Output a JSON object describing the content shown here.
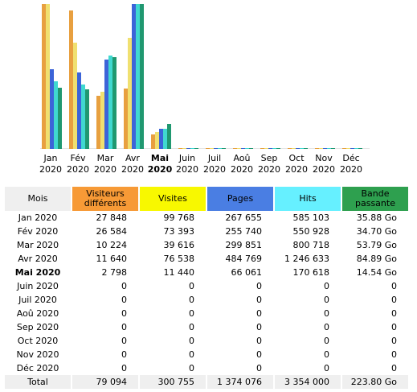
{
  "chart_data": {
    "type": "bar",
    "categories": [
      "Jan 2020",
      "Fév 2020",
      "Mar 2020",
      "Avr 2020",
      "Mai 2020",
      "Juin 2020",
      "Juil 2020",
      "Aoû 2020",
      "Sep 2020",
      "Oct 2020",
      "Nov 2020",
      "Déc 2020"
    ],
    "month_names": [
      "Jan",
      "Fév",
      "Mar",
      "Avr",
      "Mai",
      "Juin",
      "Juil",
      "Aoû",
      "Sep",
      "Oct",
      "Nov",
      "Déc"
    ],
    "years": [
      "2020",
      "2020",
      "2020",
      "2020",
      "2020",
      "2020",
      "2020",
      "2020",
      "2020",
      "2020",
      "2020",
      "2020"
    ],
    "current_index": 4,
    "series": [
      {
        "name": "Visiteurs différents",
        "color": "#e8a040",
        "values": [
          27848,
          26584,
          10224,
          11640,
          2798,
          0,
          0,
          0,
          0,
          0,
          0,
          0
        ]
      },
      {
        "name": "Visites",
        "color": "#f0e070",
        "values": [
          99768,
          73393,
          39616,
          76538,
          11440,
          0,
          0,
          0,
          0,
          0,
          0,
          0
        ]
      },
      {
        "name": "Pages",
        "color": "#3c64d8",
        "values": [
          267655,
          255740,
          299851,
          484769,
          66061,
          0,
          0,
          0,
          0,
          0,
          0,
          0
        ]
      },
      {
        "name": "Hits",
        "color": "#40d8d0",
        "values": [
          585103,
          550928,
          800718,
          1246633,
          170618,
          0,
          0,
          0,
          0,
          0,
          0,
          0
        ]
      },
      {
        "name": "Bande passante",
        "color": "#209870",
        "values": [
          35.88,
          34.7,
          53.79,
          84.89,
          14.54,
          0,
          0,
          0,
          0,
          0,
          0,
          0
        ]
      }
    ]
  },
  "table": {
    "headers": {
      "month": "Mois",
      "visitors": "Visiteurs différents",
      "visits": "Visites",
      "pages": "Pages",
      "hits": "Hits",
      "bandwidth": "Bande passante"
    },
    "rows": [
      {
        "month": "Jan 2020",
        "visitors": "27 848",
        "visits": "99 768",
        "pages": "267 655",
        "hits": "585 103",
        "bandwidth": "35.88 Go"
      },
      {
        "month": "Fév 2020",
        "visitors": "26 584",
        "visits": "73 393",
        "pages": "255 740",
        "hits": "550 928",
        "bandwidth": "34.70 Go"
      },
      {
        "month": "Mar 2020",
        "visitors": "10 224",
        "visits": "39 616",
        "pages": "299 851",
        "hits": "800 718",
        "bandwidth": "53.79 Go"
      },
      {
        "month": "Avr 2020",
        "visitors": "11 640",
        "visits": "76 538",
        "pages": "484 769",
        "hits": "1 246 633",
        "bandwidth": "84.89 Go"
      },
      {
        "month": "Mai 2020",
        "visitors": "2 798",
        "visits": "11 440",
        "pages": "66 061",
        "hits": "170 618",
        "bandwidth": "14.54 Go"
      },
      {
        "month": "Juin 2020",
        "visitors": "0",
        "visits": "0",
        "pages": "0",
        "hits": "0",
        "bandwidth": "0"
      },
      {
        "month": "Juil 2020",
        "visitors": "0",
        "visits": "0",
        "pages": "0",
        "hits": "0",
        "bandwidth": "0"
      },
      {
        "month": "Aoû 2020",
        "visitors": "0",
        "visits": "0",
        "pages": "0",
        "hits": "0",
        "bandwidth": "0"
      },
      {
        "month": "Sep 2020",
        "visitors": "0",
        "visits": "0",
        "pages": "0",
        "hits": "0",
        "bandwidth": "0"
      },
      {
        "month": "Oct 2020",
        "visitors": "0",
        "visits": "0",
        "pages": "0",
        "hits": "0",
        "bandwidth": "0"
      },
      {
        "month": "Nov 2020",
        "visitors": "0",
        "visits": "0",
        "pages": "0",
        "hits": "0",
        "bandwidth": "0"
      },
      {
        "month": "Déc 2020",
        "visitors": "0",
        "visits": "0",
        "pages": "0",
        "hits": "0",
        "bandwidth": "0"
      }
    ],
    "total": {
      "month": "Total",
      "visitors": "79 094",
      "visits": "300 755",
      "pages": "1 374 076",
      "hits": "3 354 000",
      "bandwidth": "223.80 Go"
    }
  }
}
